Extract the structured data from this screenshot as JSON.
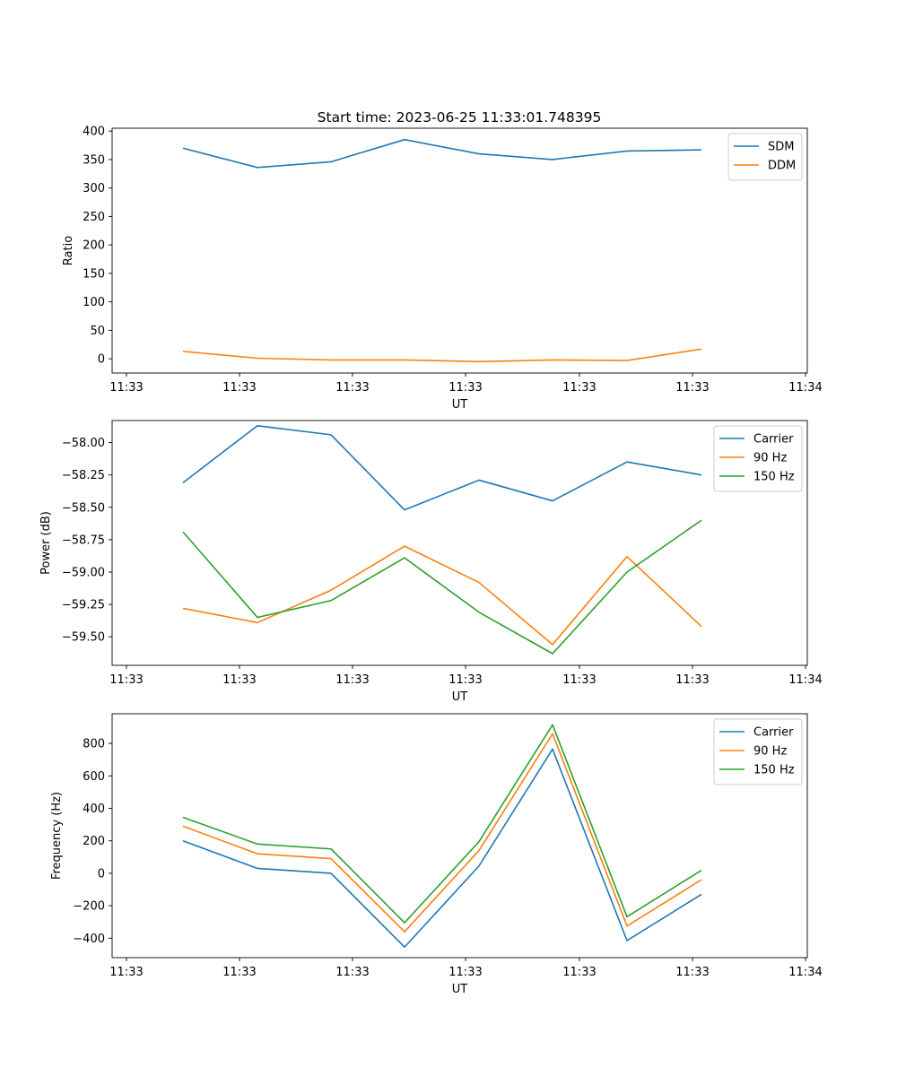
{
  "figure": {
    "title": "Start time: 2023-06-25 11:33:01.748395"
  },
  "chart_data": [
    {
      "type": "line",
      "title": "Start time: 2023-06-25 11:33:01.748395",
      "xlabel": "UT",
      "ylabel": "Ratio",
      "x_ticks": [
        "11:33",
        "11:33",
        "11:33",
        "11:33",
        "11:33",
        "11:33",
        "11:34"
      ],
      "y_ticks": [
        0,
        50,
        100,
        150,
        200,
        250,
        300,
        350,
        400
      ],
      "ylim": [
        -25,
        405
      ],
      "grid": false,
      "legend_position": "upper-right",
      "series": [
        {
          "name": "SDM",
          "color": "#1f77b4",
          "values": [
            370,
            336,
            346,
            385,
            360,
            350,
            365,
            367
          ]
        },
        {
          "name": "DDM",
          "color": "#ff7f0e",
          "values": [
            13,
            1,
            -2,
            -2,
            -5,
            -2,
            -3,
            17
          ]
        }
      ]
    },
    {
      "type": "line",
      "title": "",
      "xlabel": "UT",
      "ylabel": "Power (dB)",
      "x_ticks": [
        "11:33",
        "11:33",
        "11:33",
        "11:33",
        "11:33",
        "11:33",
        "11:34"
      ],
      "y_ticks": [
        -59.5,
        -59.25,
        -59.0,
        -58.75,
        -58.5,
        -58.25,
        -58.0
      ],
      "y_tick_labels": [
        "−59.50",
        "−59.25",
        "−59.00",
        "−58.75",
        "−58.50",
        "−58.25",
        "−58.00"
      ],
      "ylim": [
        -59.72,
        -57.83
      ],
      "grid": false,
      "legend_position": "upper-right",
      "series": [
        {
          "name": "Carrier",
          "color": "#1f77b4",
          "values": [
            -58.31,
            -57.87,
            -57.94,
            -58.52,
            -58.29,
            -58.45,
            -58.15,
            -58.25
          ]
        },
        {
          "name": "90 Hz",
          "color": "#ff7f0e",
          "values": [
            -59.28,
            -59.39,
            -59.14,
            -58.8,
            -59.08,
            -59.56,
            -58.88,
            -59.42
          ]
        },
        {
          "name": "150 Hz",
          "color": "#2ca02c",
          "values": [
            -58.69,
            -59.35,
            -59.22,
            -58.89,
            -59.31,
            -59.63,
            -59.0,
            -58.6
          ]
        }
      ]
    },
    {
      "type": "line",
      "title": "",
      "xlabel": "UT",
      "ylabel": "Frequency (Hz)",
      "x_ticks": [
        "11:33",
        "11:33",
        "11:33",
        "11:33",
        "11:33",
        "11:33",
        "11:34"
      ],
      "y_ticks": [
        -400,
        -200,
        0,
        200,
        400,
        600,
        800
      ],
      "y_tick_labels": [
        "−400",
        "−200",
        "0",
        "200",
        "400",
        "600",
        "800"
      ],
      "ylim": [
        -520,
        983
      ],
      "grid": false,
      "legend_position": "upper-right",
      "series": [
        {
          "name": "Carrier",
          "color": "#1f77b4",
          "values": [
            200,
            30,
            0,
            -455,
            45,
            765,
            -415,
            -130
          ]
        },
        {
          "name": "90 Hz",
          "color": "#ff7f0e",
          "values": [
            290,
            120,
            90,
            -360,
            140,
            860,
            -325,
            -40
          ]
        },
        {
          "name": "150 Hz",
          "color": "#2ca02c",
          "values": [
            345,
            180,
            150,
            -305,
            195,
            915,
            -268,
            18
          ]
        }
      ]
    }
  ]
}
